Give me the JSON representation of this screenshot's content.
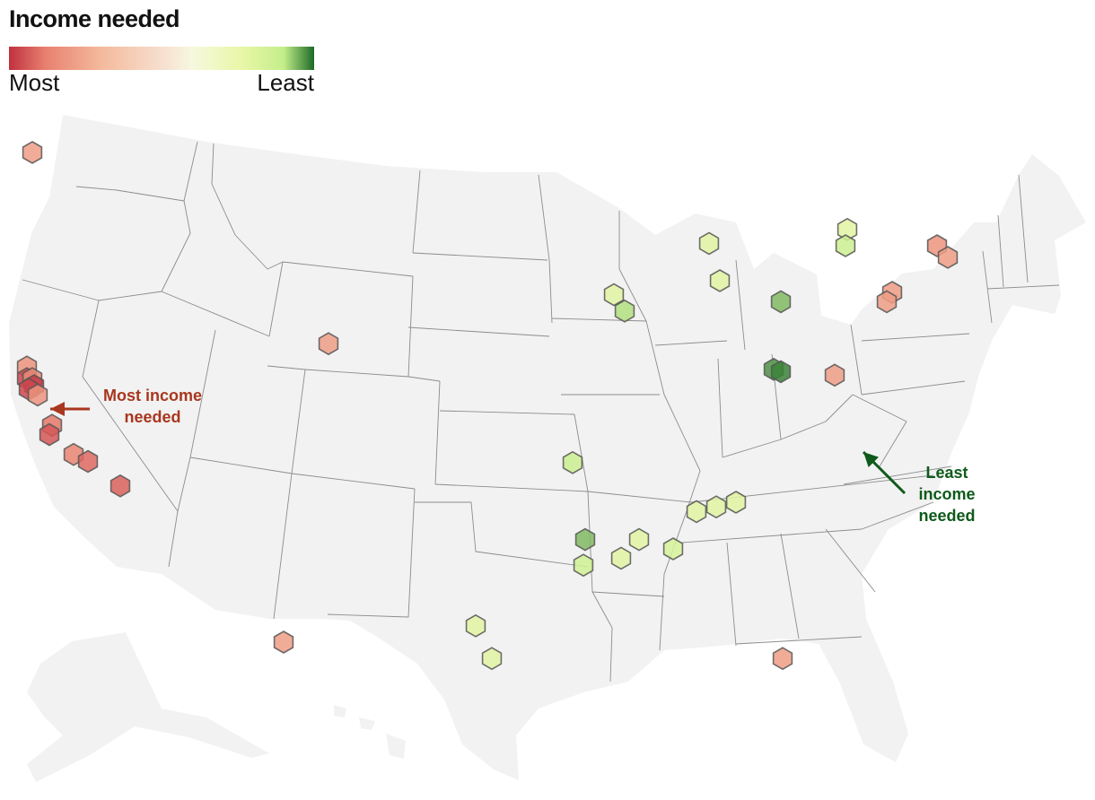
{
  "legend": {
    "title": "Income needed",
    "min_label": "Most",
    "max_label": "Least",
    "colors": [
      "#c0303f",
      "#e8816f",
      "#f4b99c",
      "#f7e3d3",
      "#e9f7a8",
      "#c4ee8a",
      "#1d6b26"
    ]
  },
  "annotations": {
    "most": {
      "lines": [
        "Most income",
        "needed"
      ],
      "color": "#a8371e"
    },
    "least": {
      "lines": [
        "Least",
        "income",
        "needed"
      ],
      "color": "#0e5a1a"
    }
  },
  "map_colors": {
    "land": "#f2f2f2",
    "border": "#8c8c8c"
  },
  "chart_data": {
    "type": "hexbin-map",
    "title": "Income needed",
    "scale": {
      "low_label": "Most",
      "high_label": "Least"
    },
    "markers": [
      {
        "lon": -122.3,
        "lat": 47.6,
        "value": 0.25
      },
      {
        "lon": -122.6,
        "lat": 38.4,
        "value": 0.22
      },
      {
        "lon": -122.6,
        "lat": 37.9,
        "value": 0.05
      },
      {
        "lon": -122.3,
        "lat": 37.9,
        "value": 0.2
      },
      {
        "lon": -122.2,
        "lat": 37.6,
        "value": 0.02
      },
      {
        "lon": -122.5,
        "lat": 37.45,
        "value": 0.05
      },
      {
        "lon": -122.0,
        "lat": 37.2,
        "value": 0.22
      },
      {
        "lon": -121.2,
        "lat": 35.9,
        "value": 0.15
      },
      {
        "lon": -121.35,
        "lat": 35.5,
        "value": 0.08
      },
      {
        "lon": -120.0,
        "lat": 34.65,
        "value": 0.18
      },
      {
        "lon": -119.2,
        "lat": 34.35,
        "value": 0.12
      },
      {
        "lon": -117.4,
        "lat": 33.3,
        "value": 0.1
      },
      {
        "lon": -105.8,
        "lat": 39.4,
        "value": 0.25
      },
      {
        "lon": -92.2,
        "lat": 34.3,
        "value": 0.8
      },
      {
        "lon": -91.5,
        "lat": 31.0,
        "value": 0.9
      },
      {
        "lon": -91.6,
        "lat": 29.9,
        "value": 0.78
      },
      {
        "lon": -89.5,
        "lat": 30.2,
        "value": 0.7
      },
      {
        "lon": -88.5,
        "lat": 31.0,
        "value": 0.7
      },
      {
        "lon": -89.9,
        "lat": 41.5,
        "value": 0.7
      },
      {
        "lon": -89.3,
        "lat": 40.8,
        "value": 0.85
      },
      {
        "lon": -84.6,
        "lat": 43.7,
        "value": 0.7
      },
      {
        "lon": -84.0,
        "lat": 42.1,
        "value": 0.7
      },
      {
        "lon": -80.6,
        "lat": 41.2,
        "value": 0.9
      },
      {
        "lon": -81.0,
        "lat": 38.3,
        "value": 0.95
      },
      {
        "lon": -80.6,
        "lat": 38.2,
        "value": 0.97
      },
      {
        "lon": -76.9,
        "lat": 44.3,
        "value": 0.7
      },
      {
        "lon": -77.0,
        "lat": 43.6,
        "value": 0.8
      },
      {
        "lon": -77.6,
        "lat": 38.05,
        "value": 0.25
      },
      {
        "lon": -74.4,
        "lat": 41.6,
        "value": 0.25
      },
      {
        "lon": -74.7,
        "lat": 41.2,
        "value": 0.25
      },
      {
        "lon": -71.9,
        "lat": 43.6,
        "value": 0.22
      },
      {
        "lon": -71.3,
        "lat": 43.1,
        "value": 0.25
      },
      {
        "lon": -85.3,
        "lat": 32.2,
        "value": 0.7
      },
      {
        "lon": -84.2,
        "lat": 32.4,
        "value": 0.7
      },
      {
        "lon": -83.1,
        "lat": 32.6,
        "value": 0.7
      },
      {
        "lon": -86.6,
        "lat": 30.6,
        "value": 0.75
      },
      {
        "lon": -80.5,
        "lat": 25.9,
        "value": 0.25
      },
      {
        "lon": -97.6,
        "lat": 27.3,
        "value": 0.7
      },
      {
        "lon": -96.7,
        "lat": 25.9,
        "value": 0.7
      },
      {
        "lon": -108.3,
        "lat": 26.6,
        "value": 0.25
      }
    ],
    "highlight": {
      "most": "California",
      "least": "West Virginia"
    }
  }
}
